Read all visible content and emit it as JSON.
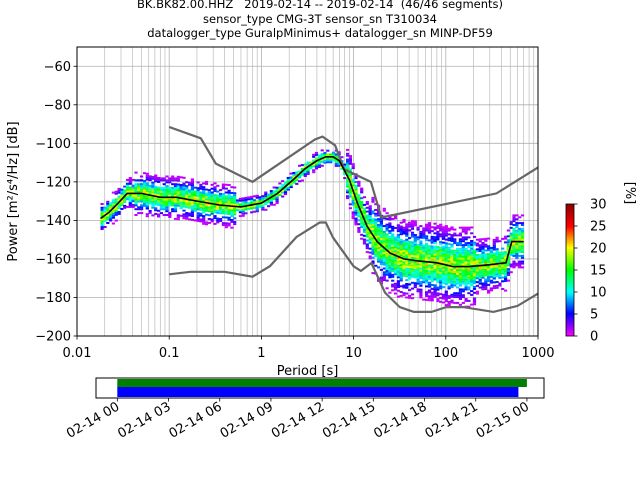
{
  "title": {
    "line1": "BK.BK82.00.HHZ   2019-02-14 -- 2019-02-14  (46/46 segments)",
    "line2": "sensor_type CMG-3T sensor_sn T310034",
    "line3": "datalogger_type GuralpMinimus+ datalogger_sn MINP-DF59"
  },
  "chart_data": [
    {
      "type": "heatmap",
      "title": "",
      "xlabel": "Period [s]",
      "ylabel": "Power [m²/s⁴/Hz] [dB]",
      "x_scale": "log",
      "xlim": [
        0.01,
        1000
      ],
      "ylim": [
        -200,
        -50
      ],
      "x_ticks": [
        0.01,
        0.1,
        1,
        10,
        100,
        1000
      ],
      "x_tick_labels": [
        "0.01",
        "0.1",
        "1",
        "10",
        "100",
        "1000"
      ],
      "y_ticks": [
        -60,
        -80,
        -100,
        -120,
        -140,
        -160,
        -180,
        -200
      ],
      "y_tick_labels": [
        "−60",
        "−80",
        "−100",
        "−120",
        "−140",
        "−160",
        "−180",
        "−200"
      ],
      "grid": true,
      "colorbar": {
        "label": "[%]",
        "range": [
          0,
          30
        ],
        "ticks": [
          "0",
          "5",
          "10",
          "15",
          "20",
          "25",
          "30"
        ],
        "colors": [
          "#ff00ff",
          "#0000ff",
          "#00ffff",
          "#00ff00",
          "#ffff00",
          "#ff0000",
          "#8b0000"
        ]
      },
      "mode_curve": {
        "name": "mode",
        "color": "#000000",
        "x": [
          0.018,
          0.022,
          0.028,
          0.035,
          0.05,
          0.08,
          0.12,
          0.2,
          0.35,
          0.6,
          1.0,
          1.5,
          2.2,
          3.0,
          4.0,
          5.0,
          6.0,
          7.0,
          9.0,
          11.0,
          14.0,
          18.0,
          25.0,
          35.0,
          50.0,
          80.0,
          120.0,
          180.0,
          300.0,
          450.0,
          520.0,
          700.0
        ],
        "y": [
          -139,
          -136,
          -131,
          -126,
          -126,
          -128,
          -128,
          -130,
          -132,
          -133,
          -131,
          -126,
          -119,
          -113,
          -109,
          -107,
          -107,
          -109,
          -119,
          -131,
          -143,
          -151,
          -157,
          -160,
          -161,
          -162,
          -164,
          -164,
          -163,
          -162,
          -151,
          -151
        ]
      },
      "noise_models": [
        {
          "name": "NHNM",
          "color": "#666666",
          "x": [
            0.1,
            0.22,
            0.32,
            0.8,
            3.8,
            4.6,
            6.3,
            7.9,
            15.4,
            20.0,
            354.8,
            1000
          ],
          "y": [
            -91.5,
            -97.4,
            -110.5,
            -120.0,
            -98.0,
            -96.5,
            -101.0,
            -113.5,
            -120.0,
            -138.5,
            -126.0,
            -112.5
          ]
        },
        {
          "name": "NLNM",
          "color": "#666666",
          "x": [
            0.1,
            0.17,
            0.4,
            0.8,
            1.24,
            2.4,
            4.3,
            5.0,
            6.0,
            10.0,
            12.0,
            15.6,
            21.9,
            31.6,
            45.0,
            70.0,
            101.0,
            154.0,
            328.0,
            600.0,
            1000
          ],
          "y": [
            -168,
            -166.7,
            -166.7,
            -169.2,
            -163.7,
            -148.6,
            -141.1,
            -141.1,
            -149,
            -163.8,
            -166.2,
            -162.1,
            -177.5,
            -185,
            -187.5,
            -187.5,
            -185,
            -185,
            -187.5,
            -184.4,
            -178
          ]
        }
      ]
    },
    {
      "type": "bar",
      "title": "",
      "xlabel": "",
      "ylabel": "",
      "x_tick_labels": [
        "02-14 00",
        "02-14 03",
        "02-14 06",
        "02-14 09",
        "02-14 12",
        "02-14 15",
        "02-14 18",
        "02-14 21",
        "02-15 00"
      ],
      "xlim_hours": [
        -1.25,
        25.0
      ],
      "series": [
        {
          "color": "#008000",
          "start_hour": 0.0,
          "end_hour": 24.0
        },
        {
          "color": "#0000ff",
          "start_hour": 0.0,
          "end_hour": 23.5
        }
      ]
    }
  ]
}
